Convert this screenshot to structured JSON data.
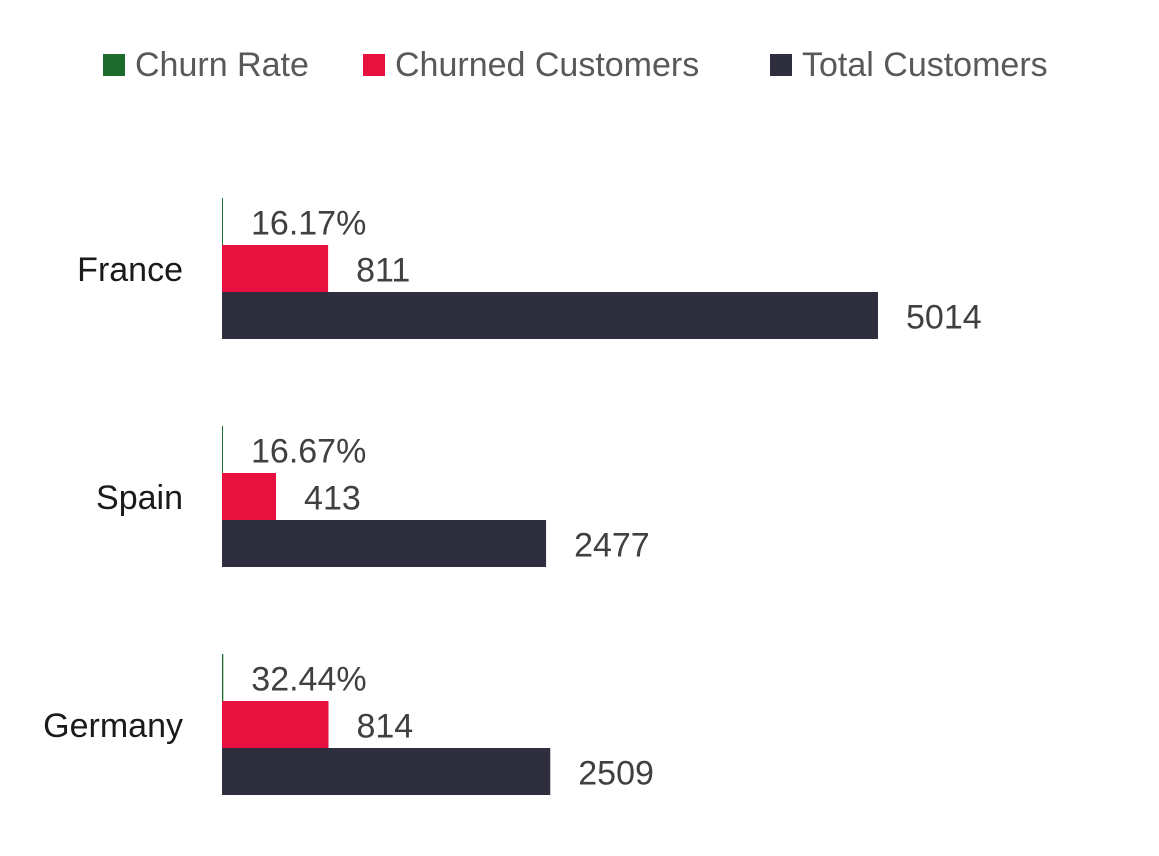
{
  "chart_data": {
    "type": "bar",
    "orientation": "horizontal",
    "categories": [
      "France",
      "Spain",
      "Germany"
    ],
    "series": [
      {
        "name": "Churn Rate",
        "color": "#1e6b2e",
        "values": [
          16.17,
          16.67,
          32.44
        ],
        "labels": [
          "16.17%",
          "16.67%",
          "32.44%"
        ]
      },
      {
        "name": "Churned Customers",
        "color": "#e8103f",
        "values": [
          811,
          413,
          814
        ],
        "labels": [
          "811",
          "413",
          "814"
        ]
      },
      {
        "name": "Total Customers",
        "color": "#2f2e3f",
        "values": [
          5014,
          2477,
          2509
        ],
        "labels": [
          "5014",
          "2477",
          "2509"
        ]
      }
    ],
    "legend_position": "top",
    "grid": false
  }
}
